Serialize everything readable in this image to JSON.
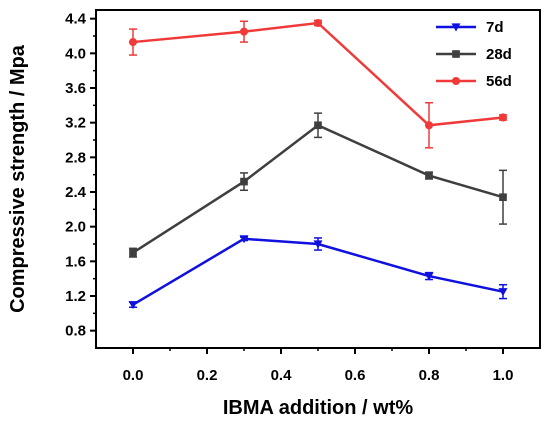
{
  "chart_data": {
    "type": "line",
    "xlabel": "IBMA addition / wt%",
    "ylabel": "Compressive strength / Mpa",
    "xlim": [
      -0.1,
      1.1
    ],
    "ylim": [
      0.6,
      4.5
    ],
    "x_ticks": [
      0.0,
      0.2,
      0.4,
      0.6,
      0.8,
      1.0
    ],
    "x_tick_labels": [
      "0.0",
      "0.2",
      "0.4",
      "0.6",
      "0.8",
      "1.0"
    ],
    "y_ticks": [
      0.8,
      1.2,
      1.6,
      2.0,
      2.4,
      2.8,
      3.2,
      3.6,
      4.0,
      4.4
    ],
    "y_tick_labels": [
      "0.8",
      "1.2",
      "1.6",
      "2.0",
      "2.4",
      "2.8",
      "3.2",
      "3.6",
      "4.0",
      "4.4"
    ],
    "grid": false,
    "legend_position": "top-right",
    "x": [
      0.0,
      0.3,
      0.5,
      0.8,
      1.0
    ],
    "series": [
      {
        "name": "7d",
        "color": "#1010e0",
        "marker": "triangle-down",
        "values": [
          1.1,
          1.86,
          1.8,
          1.43,
          1.25
        ],
        "errors": [
          0.03,
          0.02,
          0.07,
          0.04,
          0.08
        ]
      },
      {
        "name": "28d",
        "color": "#3f3f3f",
        "marker": "square",
        "values": [
          1.7,
          2.52,
          3.17,
          2.59,
          2.34
        ],
        "errors": [
          0.05,
          0.1,
          0.14,
          0.04,
          0.31
        ]
      },
      {
        "name": "56d",
        "color": "#f03a3a",
        "marker": "circle",
        "values": [
          4.13,
          4.25,
          4.35,
          3.17,
          3.26
        ],
        "errors": [
          0.15,
          0.12,
          0.03,
          0.26,
          0.03
        ]
      }
    ]
  }
}
